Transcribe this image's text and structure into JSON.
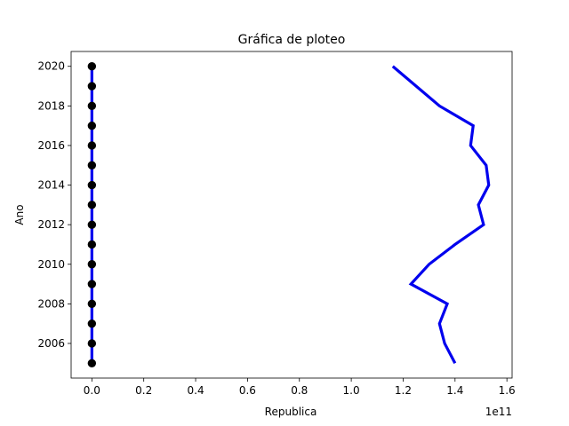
{
  "chart_data": {
    "type": "line",
    "title": "Gráfica de ploteo",
    "xlabel": "Republica",
    "ylabel": "Ano",
    "x_offset_label": "1e11",
    "xlim": [
      -0.08,
      1.62
    ],
    "ylim": [
      2004.25,
      2020.75
    ],
    "x_scale": 100000000000.0,
    "x_ticks": [
      0.0,
      0.2,
      0.4,
      0.6,
      0.8,
      1.0,
      1.2,
      1.4,
      1.6
    ],
    "x_tick_labels": [
      "0.0",
      "0.2",
      "0.4",
      "0.6",
      "0.8",
      "1.0",
      "1.2",
      "1.4",
      "1.6"
    ],
    "y_ticks": [
      2006,
      2008,
      2010,
      2012,
      2014,
      2016,
      2018,
      2020
    ],
    "y_tick_labels": [
      "2006",
      "2008",
      "2010",
      "2012",
      "2014",
      "2016",
      "2018",
      "2020"
    ],
    "grid": false,
    "series": [
      {
        "color": "#0000ee",
        "marker": "none",
        "x": [
          1.4,
          1.36,
          1.34,
          1.37,
          1.23,
          1.3,
          1.4,
          1.51,
          1.49,
          1.53,
          1.52,
          1.46,
          1.47,
          1.34,
          1.16
        ],
        "y": [
          2005,
          2006,
          2007,
          2008,
          2009,
          2010,
          2011,
          2012,
          2013,
          2014,
          2015,
          2016,
          2017,
          2018,
          2020
        ]
      },
      {
        "color": "#0000ee",
        "marker": "circle",
        "marker_color": "#000000",
        "x": [
          0,
          0,
          0,
          0,
          0,
          0,
          0,
          0,
          0,
          0,
          0,
          0,
          0,
          0,
          0,
          0
        ],
        "y": [
          2005,
          2006,
          2007,
          2008,
          2009,
          2010,
          2011,
          2012,
          2013,
          2014,
          2015,
          2016,
          2017,
          2018,
          2019,
          2020
        ]
      }
    ]
  }
}
